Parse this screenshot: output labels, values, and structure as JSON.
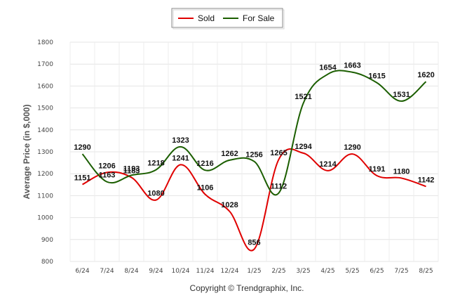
{
  "chart_data": {
    "type": "line",
    "ylabel": "Average Price (in $,000)",
    "xlabel": "",
    "categories": [
      "6/24",
      "7/24",
      "8/24",
      "9/24",
      "10/24",
      "11/24",
      "12/24",
      "1/25",
      "2/25",
      "3/25",
      "4/25",
      "5/25",
      "6/25",
      "7/25",
      "8/25"
    ],
    "ylim": [
      800,
      1800
    ],
    "yticks": [
      800,
      900,
      1000,
      1100,
      1200,
      1300,
      1400,
      1500,
      1600,
      1700,
      1800
    ],
    "grid": true,
    "legend_position": "top-center",
    "series": [
      {
        "name": "Sold",
        "color": "#e00000",
        "values": [
          1151,
          1206,
          1183,
          1080,
          1241,
          1106,
          1028,
          856,
          1265,
          1294,
          1214,
          1290,
          1191,
          1180,
          1142
        ]
      },
      {
        "name": "For Sale",
        "color": "#1b5e00",
        "values": [
          1290,
          1163,
          1193,
          1218,
          1323,
          1216,
          1262,
          1256,
          1112,
          1521,
          1654,
          1663,
          1615,
          1531,
          1620
        ]
      }
    ]
  },
  "footer": {
    "copyright": "Copyright © Trendgraphix, Inc."
  }
}
